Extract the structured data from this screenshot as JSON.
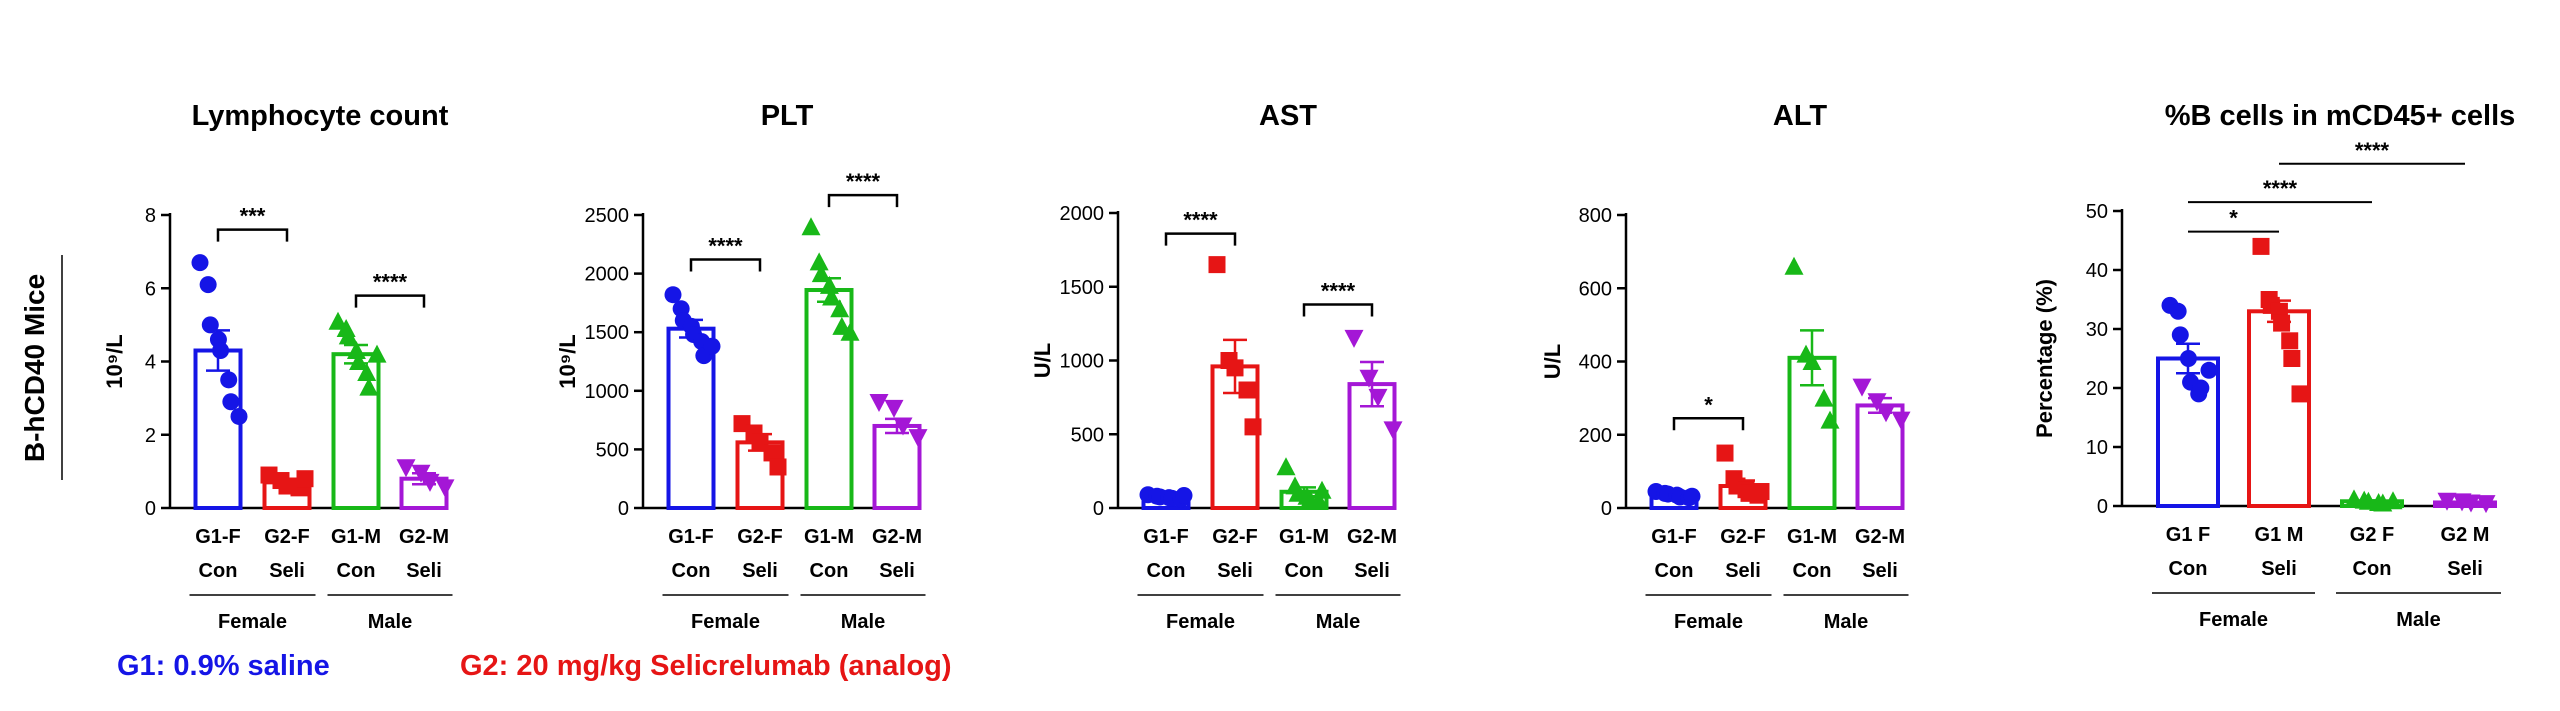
{
  "side_label": "B-hCD40 Mice",
  "legend": {
    "g1": "G1: 0.9% saline",
    "g2": "G2: 20 mg/kg Selicrelumab (analog)"
  },
  "colors": {
    "g1f": "#1515e6",
    "g2f": "#e61515",
    "g1m": "#18b818",
    "g2m": "#a417d6",
    "axis": "#000000"
  },
  "chart_data": [
    {
      "type": "bar",
      "title": "Lymphocyte count",
      "ylabel_html": "10⁹/L",
      "ylim": [
        0,
        8
      ],
      "yticks": [
        0,
        2,
        4,
        6,
        8
      ],
      "categories": [
        "G1-F",
        "G2-F",
        "G1-M",
        "G2-M"
      ],
      "sublabels": [
        "Con",
        "Seli",
        "Con",
        "Seli"
      ],
      "groups": [
        {
          "label": "Female",
          "span": [
            0,
            1
          ]
        },
        {
          "label": "Male",
          "span": [
            2,
            3
          ]
        }
      ],
      "bars": [
        {
          "name": "G1-F",
          "color": "g1f",
          "marker": "circle",
          "mean": 4.3,
          "sem": 0.55,
          "points": [
            6.7,
            6.1,
            5.0,
            4.6,
            4.3,
            3.5,
            2.9,
            2.5
          ]
        },
        {
          "name": "G2-F",
          "color": "g2f",
          "marker": "square",
          "mean": 0.7,
          "sem": 0.1,
          "points": [
            0.9,
            0.75,
            0.6,
            0.55,
            0.8
          ]
        },
        {
          "name": "G1-M",
          "color": "g1m",
          "marker": "triangle",
          "mean": 4.2,
          "sem": 0.25,
          "points": [
            5.1,
            4.9,
            4.7,
            4.3,
            4.0,
            3.7,
            3.3,
            4.2
          ]
        },
        {
          "name": "G2-M",
          "color": "g2m",
          "marker": "triangle-down",
          "mean": 0.8,
          "sem": 0.15,
          "points": [
            1.1,
            0.95,
            0.7,
            0.55
          ]
        }
      ],
      "sig": [
        {
          "from": 0,
          "to": 1,
          "y": 7.6,
          "label": "***"
        },
        {
          "from": 2,
          "to": 3,
          "y": 5.8,
          "label": "****"
        }
      ]
    },
    {
      "type": "bar",
      "title": "PLT",
      "ylabel_html": "10⁹/L",
      "ylim": [
        0,
        2500
      ],
      "yticks": [
        0,
        500,
        1000,
        1500,
        2000,
        2500
      ],
      "categories": [
        "G1-F",
        "G2-F",
        "G1-M",
        "G2-M"
      ],
      "sublabels": [
        "Con",
        "Seli",
        "Con",
        "Seli"
      ],
      "groups": [
        {
          "label": "Female",
          "span": [
            0,
            1
          ]
        },
        {
          "label": "Male",
          "span": [
            2,
            3
          ]
        }
      ],
      "bars": [
        {
          "name": "G1-F",
          "color": "g1f",
          "marker": "circle",
          "mean": 1530,
          "sem": 75,
          "points": [
            1820,
            1700,
            1600,
            1550,
            1480,
            1420,
            1300,
            1380
          ]
        },
        {
          "name": "G2-F",
          "color": "g2f",
          "marker": "square",
          "mean": 560,
          "sem": 70,
          "points": [
            720,
            640,
            560,
            470,
            350
          ]
        },
        {
          "name": "G1-M",
          "color": "g1m",
          "marker": "triangle",
          "mean": 1860,
          "sem": 100,
          "points": [
            2400,
            2100,
            2000,
            1900,
            1800,
            1700,
            1550,
            1500
          ]
        },
        {
          "name": "G2-M",
          "color": "g2m",
          "marker": "triangle-down",
          "mean": 700,
          "sem": 60,
          "points": [
            900,
            850,
            700,
            600
          ]
        }
      ],
      "sig": [
        {
          "from": 0,
          "to": 1,
          "y": 2120,
          "label": "****"
        },
        {
          "from": 2,
          "to": 3,
          "y": 2670,
          "label": "****"
        }
      ]
    },
    {
      "type": "bar",
      "title": "AST",
      "ylabel_html": "U/L",
      "ylim": [
        0,
        2000
      ],
      "yticks": [
        0,
        500,
        1000,
        1500,
        2000
      ],
      "categories": [
        "G1-F",
        "G2-F",
        "G1-M",
        "G2-M"
      ],
      "sublabels": [
        "Con",
        "Seli",
        "Con",
        "Seli"
      ],
      "groups": [
        {
          "label": "Female",
          "span": [
            0,
            1
          ]
        },
        {
          "label": "Male",
          "span": [
            2,
            3
          ]
        }
      ],
      "bars": [
        {
          "name": "G1-F",
          "color": "g1f",
          "marker": "circle",
          "mean": 75,
          "sem": 8,
          "points": [
            90,
            80,
            75,
            70,
            65,
            60,
            85
          ]
        },
        {
          "name": "G2-F",
          "color": "g2f",
          "marker": "square",
          "mean": 960,
          "sem": 180,
          "points": [
            1650,
            1000,
            950,
            800,
            550
          ]
        },
        {
          "name": "G1-M",
          "color": "g1m",
          "marker": "triangle",
          "mean": 110,
          "sem": 30,
          "points": [
            280,
            150,
            100,
            80,
            60,
            50,
            120
          ]
        },
        {
          "name": "G2-M",
          "color": "g2m",
          "marker": "triangle-down",
          "mean": 840,
          "sem": 150,
          "points": [
            1150,
            880,
            750,
            530
          ]
        }
      ],
      "sig": [
        {
          "from": 0,
          "to": 1,
          "y": 1860,
          "label": "****"
        },
        {
          "from": 2,
          "to": 3,
          "y": 1380,
          "label": "****"
        }
      ]
    },
    {
      "type": "bar",
      "title": "ALT",
      "ylabel_html": "U/L",
      "ylim": [
        0,
        800
      ],
      "yticks": [
        0,
        200,
        400,
        600,
        800
      ],
      "categories": [
        "G1-F",
        "G2-F",
        "G1-M",
        "G2-M"
      ],
      "sublabels": [
        "Con",
        "Seli",
        "Con",
        "Seli"
      ],
      "groups": [
        {
          "label": "Female",
          "span": [
            0,
            1
          ]
        },
        {
          "label": "Male",
          "span": [
            2,
            3
          ]
        }
      ],
      "bars": [
        {
          "name": "G1-F",
          "color": "g1f",
          "marker": "circle",
          "mean": 35,
          "sem": 4,
          "points": [
            45,
            40,
            38,
            35,
            30,
            28,
            32
          ]
        },
        {
          "name": "G2-F",
          "color": "g2f",
          "marker": "square",
          "mean": 60,
          "sem": 15,
          "points": [
            150,
            80,
            60,
            50,
            40,
            35,
            45
          ]
        },
        {
          "name": "G1-M",
          "color": "g1m",
          "marker": "triangle",
          "mean": 410,
          "sem": 75,
          "points": [
            660,
            420,
            400,
            300,
            240
          ]
        },
        {
          "name": "G2-M",
          "color": "g2m",
          "marker": "triangle-down",
          "mean": 280,
          "sem": 20,
          "points": [
            330,
            290,
            260,
            240
          ]
        }
      ],
      "sig": [
        {
          "from": 0,
          "to": 1,
          "y": 245,
          "label": "*"
        }
      ]
    },
    {
      "type": "bar",
      "title": "%B cells in mCD45+ cells",
      "ylabel_html": "Percentage (%)",
      "ylim": [
        0,
        50
      ],
      "yticks": [
        0,
        10,
        20,
        30,
        40,
        50
      ],
      "categories": [
        "G1 F",
        "G1 M",
        "G2 F",
        "G2 M"
      ],
      "sublabels": [
        "Con",
        "Seli",
        "Con",
        "Seli"
      ],
      "groups": [
        {
          "label": "Female",
          "span": [
            0,
            1
          ]
        },
        {
          "label": "Male",
          "span": [
            2,
            3
          ]
        }
      ],
      "bars": [
        {
          "name": "G1 F",
          "color": "g1f",
          "marker": "circle",
          "mean": 25,
          "sem": 2.5,
          "points": [
            34,
            33,
            29,
            25,
            21,
            19,
            20,
            23
          ]
        },
        {
          "name": "G1 M",
          "color": "g2f",
          "marker": "square",
          "mean": 33,
          "sem": 1.8,
          "points": [
            44,
            35,
            34,
            33,
            31,
            28,
            25,
            19
          ]
        },
        {
          "name": "G2 F",
          "color": "g1m",
          "marker": "triangle",
          "mean": 0.8,
          "sem": 0.15,
          "points": [
            1.2,
            1.0,
            0.8,
            0.6,
            0.5,
            0.9
          ]
        },
        {
          "name": "G2 M",
          "color": "g2m",
          "marker": "triangle-down",
          "mean": 0.6,
          "sem": 0.1,
          "points": [
            0.8,
            0.7,
            0.5,
            0.4
          ]
        }
      ],
      "sig": [
        {
          "from": 0,
          "to": 1,
          "y": 46.5,
          "label": "*",
          "style": "line"
        },
        {
          "from": 0,
          "to": 2,
          "y": 51.5,
          "label": "****",
          "style": "line"
        },
        {
          "from": 1,
          "to": 3,
          "y": 58,
          "label": "****",
          "style": "line"
        }
      ]
    }
  ]
}
